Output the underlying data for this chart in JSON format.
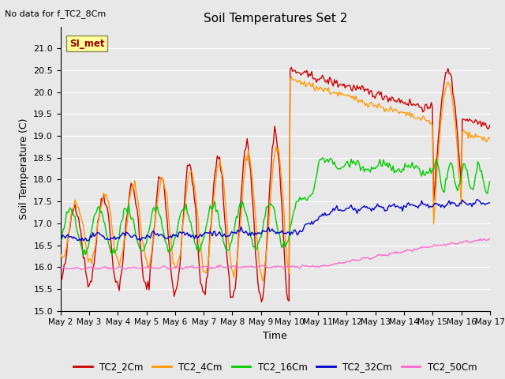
{
  "title": "Soil Temperatures Set 2",
  "top_left_text": "No data for f_TC2_8Cm",
  "xlabel": "Time",
  "ylabel": "Soil Temperature (C)",
  "ylim": [
    15.0,
    21.5
  ],
  "yticks": [
    15.0,
    15.5,
    16.0,
    16.5,
    17.0,
    17.5,
    18.0,
    18.5,
    19.0,
    19.5,
    20.0,
    20.5,
    21.0
  ],
  "legend_labels": [
    "TC2_2Cm",
    "TC2_4Cm",
    "TC2_16Cm",
    "TC2_32Cm",
    "TC2_50Cm"
  ],
  "legend_colors": [
    "#cc0000",
    "#ff9900",
    "#00cc00",
    "#0000cc",
    "#ff66cc"
  ],
  "annotation_text": "SI_met",
  "annotation_color": "#990000",
  "annotation_bg": "#ffff99",
  "background_color": "#e8e8e8",
  "plot_bg_color": "#e8e8e8",
  "grid_color": "#ffffff",
  "line_width": 1.0,
  "n_days": 15,
  "pts_per_day": 24
}
